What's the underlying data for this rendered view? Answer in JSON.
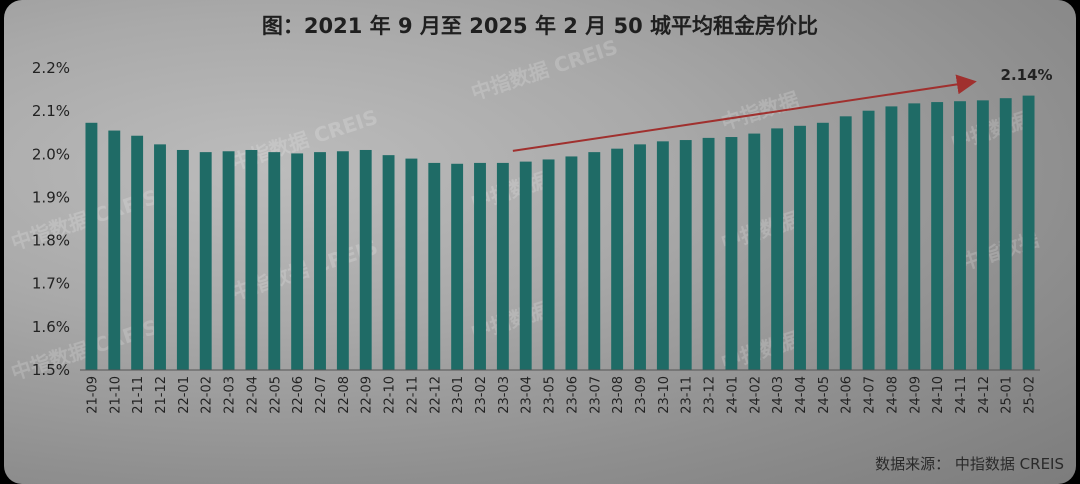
{
  "title": "图：2021 年 9 月至 2025 年 2 月 50 城平均租金房价比",
  "source": "数据来源：  中指数据 CREIS",
  "watermarks": [
    "中指数据 CREIS",
    "中指数据"
  ],
  "colors": {
    "bar": "#1f6b66",
    "arrow": "#a0302e",
    "text": "#222222"
  },
  "chart_data": {
    "type": "bar",
    "categories": [
      "21-09",
      "21-10",
      "21-11",
      "21-12",
      "22-01",
      "22-02",
      "22-03",
      "22-04",
      "22-05",
      "22-06",
      "22-07",
      "22-08",
      "22-09",
      "22-10",
      "22-11",
      "22-12",
      "23-01",
      "23-02",
      "23-03",
      "23-04",
      "23-05",
      "23-06",
      "23-07",
      "23-08",
      "23-09",
      "23-10",
      "23-11",
      "23-12",
      "24-01",
      "24-02",
      "24-03",
      "24-04",
      "24-05",
      "24-06",
      "24-07",
      "24-08",
      "24-09",
      "24-10",
      "24-11",
      "24-12",
      "25-01",
      "25-02"
    ],
    "values": [
      2.073,
      2.055,
      2.043,
      2.023,
      2.01,
      2.005,
      2.007,
      2.01,
      2.005,
      2.002,
      2.005,
      2.007,
      2.01,
      1.998,
      1.99,
      1.98,
      1.978,
      1.98,
      1.98,
      1.983,
      1.988,
      1.995,
      2.005,
      2.013,
      2.023,
      2.03,
      2.033,
      2.038,
      2.04,
      2.048,
      2.06,
      2.066,
      2.073,
      2.088,
      2.101,
      2.111,
      2.118,
      2.121,
      2.123,
      2.125,
      2.13,
      2.136
    ],
    "yticks": [
      "1.5%",
      "1.6%",
      "1.7%",
      "1.8%",
      "1.9%",
      "2.0%",
      "2.1%",
      "2.2%"
    ],
    "ylim": [
      1.5,
      2.2
    ],
    "annotation": "2.14%",
    "trend_arrow": {
      "from": "23-03",
      "to": "24-12"
    }
  }
}
